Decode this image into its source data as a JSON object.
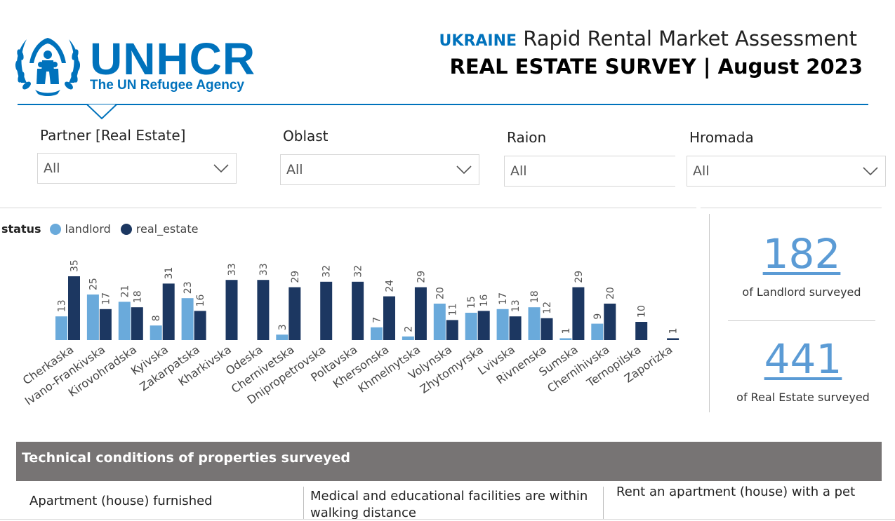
{
  "header": {
    "logo_word": "UNHCR",
    "logo_tagline": "The UN Refugee Agency",
    "title_country": "UKRAINE",
    "title_rest": "Rapid Rental Market Assessment",
    "subtitle": "REAL ESTATE SURVEY | August 2023",
    "accent_color": "#0072bc"
  },
  "filters": [
    {
      "label": "Partner [Real Estate]",
      "value": "All",
      "has_chevron": true
    },
    {
      "label": "Oblast",
      "value": "All",
      "has_chevron": true
    },
    {
      "label": "Raion",
      "value": "All",
      "has_chevron": false
    },
    {
      "label": "Hromada",
      "value": "All",
      "has_chevron": true
    }
  ],
  "legend": {
    "title": "status",
    "items": [
      {
        "label": "landlord",
        "color": "#6aaadb"
      },
      {
        "label": "real_estate",
        "color": "#1c3761"
      }
    ]
  },
  "chart_data": {
    "type": "bar",
    "categories": [
      "Cherkaska",
      "Ivano-Frankivska",
      "Kirovohradska",
      "Kyivska",
      "Zakarpatska",
      "Kharkivska",
      "Odeska",
      "Chernivetska",
      "Dnipropetrovska",
      "Poltavska",
      "Khersonska",
      "Khmelnytska",
      "Volynska",
      "Zhytomyrska",
      "Lvivska",
      "Rivnenska",
      "Sumska",
      "Chernihivska",
      "Ternopilska",
      "Zaporizka"
    ],
    "series": [
      {
        "name": "landlord",
        "color": "#6aaadb",
        "values": [
          13,
          25,
          21,
          8,
          23,
          null,
          null,
          3,
          null,
          null,
          7,
          2,
          20,
          15,
          17,
          18,
          1,
          9,
          null,
          null
        ]
      },
      {
        "name": "real_estate",
        "color": "#1c3761",
        "values": [
          35,
          17,
          18,
          31,
          16,
          33,
          33,
          29,
          32,
          32,
          24,
          29,
          11,
          16,
          13,
          12,
          29,
          20,
          10,
          1
        ]
      }
    ],
    "ylim": [
      0,
      35
    ],
    "grid": false,
    "legend_position": "top-left"
  },
  "kpis": [
    {
      "value": "182",
      "label": "of Landlord surveyed"
    },
    {
      "value": "441",
      "label": "of Real Estate surveyed"
    }
  ],
  "technical": {
    "title": "Technical conditions of properties surveyed",
    "columns": [
      "Apartment (house) furnished",
      "Medical and educational facilities are within walking distance",
      "Rent an apartment (house) with a pet"
    ]
  }
}
